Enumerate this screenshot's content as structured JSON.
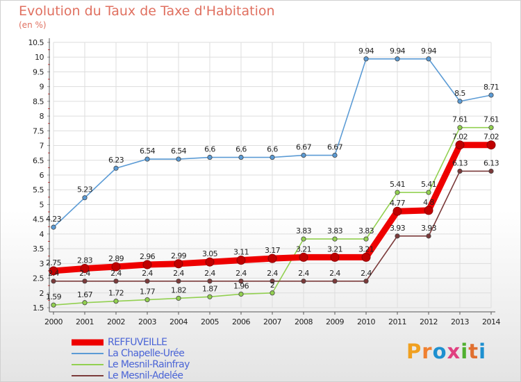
{
  "title": "Evolution du Taux de Taxe d'Habitation",
  "subtitle": "(en %)",
  "logo_text": "Proxiti",
  "colors": {
    "axis_text": "#222222",
    "grid": "#dddddd",
    "title": "#e07060",
    "legend_text": "#4a64d6"
  },
  "chart_data": {
    "type": "line",
    "x": [
      "2000",
      "2001",
      "2002",
      "2003",
      "2004",
      "2005",
      "2006",
      "2007",
      "2008",
      "2009",
      "2010",
      "2011",
      "2012",
      "2013",
      "2014"
    ],
    "ylim": [
      1.5,
      10.5
    ],
    "yticks": [
      "1.5",
      "2",
      "2.5",
      "3",
      "3.5",
      "4",
      "4.5",
      "5",
      "5.5",
      "6",
      "6.5",
      "7",
      "7.5",
      "8",
      "8.5",
      "9",
      "9.5",
      "10",
      "10.5"
    ],
    "grid": "horizontal",
    "legend_position": "bottom-left",
    "series": [
      {
        "name": "REFFUVEILLE",
        "color": "#ee0000",
        "values": [
          2.75,
          2.83,
          2.89,
          2.96,
          2.99,
          3.05,
          3.11,
          3.17,
          3.21,
          3.21,
          3.21,
          4.77,
          4.8,
          7.02,
          7.02
        ],
        "labels": [
          "2.75",
          "2.83",
          "2.89",
          "2.96",
          "2.99",
          "3.05",
          "3.11",
          "3.17",
          "3.21",
          "3.21",
          "3.21",
          "4.77",
          "4.8",
          "7.02",
          "7.02"
        ]
      },
      {
        "name": "La Chapelle-Urée",
        "color": "#5b9bd5",
        "values": [
          4.23,
          5.23,
          6.23,
          6.54,
          6.54,
          6.6,
          6.6,
          6.6,
          6.67,
          6.67,
          9.94,
          9.94,
          9.94,
          8.5,
          8.71
        ],
        "labels": [
          "4.23",
          "5.23",
          "6.23",
          "6.54",
          "6.54",
          "6.6",
          "6.6",
          "6.6",
          "6.67",
          "6.67",
          "9.94",
          "9.94",
          "9.94",
          "8.5",
          "8.71"
        ]
      },
      {
        "name": "Le Mesnil-Rainfray",
        "color": "#92d050",
        "values": [
          1.59,
          1.67,
          1.72,
          1.77,
          1.82,
          1.87,
          1.96,
          2,
          3.83,
          3.83,
          3.83,
          5.41,
          5.41,
          7.61,
          7.61
        ],
        "labels": [
          "1.59",
          "1.67",
          "1.72",
          "1.77",
          "1.82",
          "1.87",
          "1.96",
          "2",
          "3.83",
          "3.83",
          "3.83",
          "5.41",
          "5.41",
          "7.61",
          "7.61"
        ]
      },
      {
        "name": "Le Mesnil-Adelée",
        "color": "#7b3a3a",
        "values": [
          2.4,
          2.4,
          2.4,
          2.4,
          2.4,
          2.4,
          2.4,
          2.4,
          2.4,
          2.4,
          2.4,
          3.93,
          3.93,
          6.13,
          6.13
        ],
        "labels": [
          "2.4",
          "2.4",
          "2.4",
          "2.4",
          "2.4",
          "2.4",
          "2.4",
          "2.4",
          "2.4",
          "2.4",
          "2.4",
          "3.93",
          "3.93",
          "6.13",
          "6.13"
        ]
      }
    ]
  }
}
